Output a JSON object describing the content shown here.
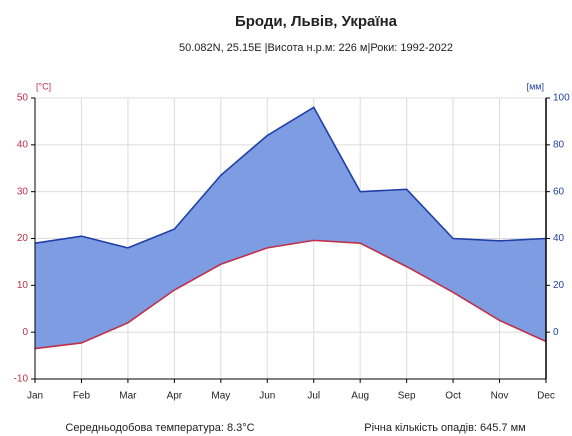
{
  "chart_data": {
    "type": "climate",
    "title": "Броди, Львів, Україна",
    "subtitle": "50.082N, 25.15E |Висота н.р.м: 226 м|Роки: 1992-2022",
    "y_label": "[°C]",
    "y2_label": "[мм]",
    "annotations": [
      "Середньодобова температура: 8.3°C",
      "Річна кількість опадів: 645.7 мм"
    ],
    "categories": [
      "Jan",
      "Feb",
      "Mar",
      "Apr",
      "May",
      "Jun",
      "Jul",
      "Aug",
      "Sep",
      "Oct",
      "Nov",
      "Dec"
    ],
    "series": [
      {
        "color": "#c0304a",
        "values": [
          -3.5,
          -2.3,
          2,
          9,
          14.5,
          18,
          19.6,
          19,
          14,
          8.5,
          2.5,
          -2
        ]
      },
      {
        "color": "#1f3fa8",
        "axis": "y2",
        "fill": "#7d9ce2",
        "values": [
          38,
          41,
          36,
          44,
          67,
          84,
          96,
          60,
          61,
          40,
          39,
          40
        ]
      }
    ],
    "ylim": [
      -10,
      50
    ],
    "yticks": [
      -10,
      0,
      10,
      20,
      30,
      40,
      50
    ],
    "y2lim": [
      -20,
      100
    ],
    "y2ticks": [
      0,
      20,
      40,
      60,
      80,
      100
    ],
    "grid": true
  }
}
